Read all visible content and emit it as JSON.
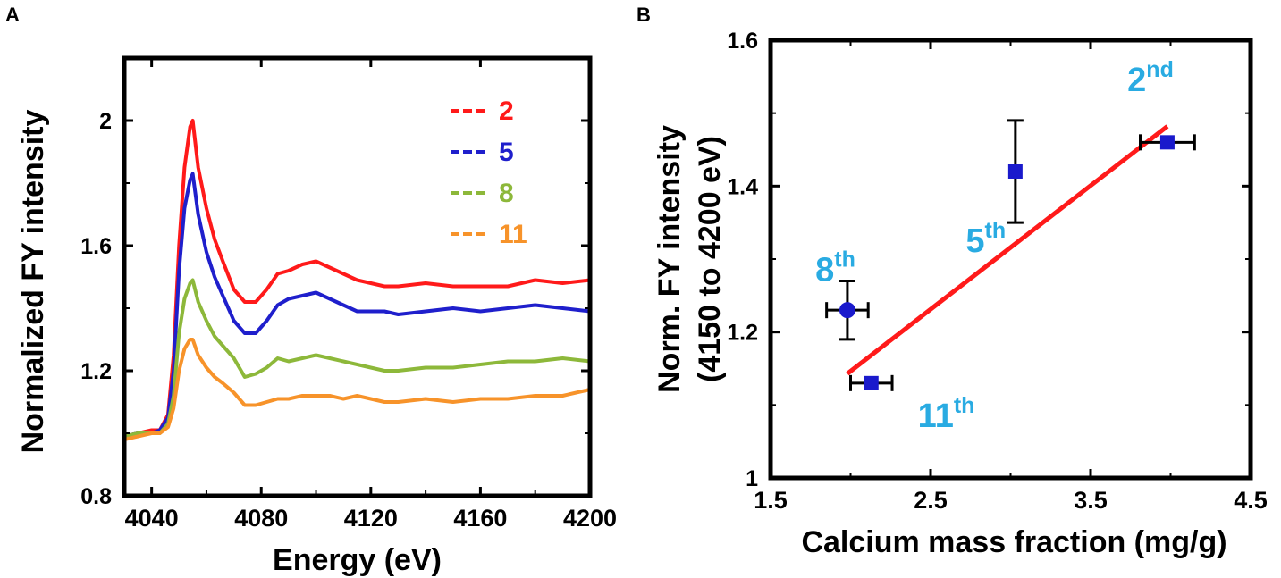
{
  "panel_a_label": "A",
  "panel_b_label": "B",
  "chart_data": [
    {
      "panel": "A",
      "type": "line",
      "title": "",
      "xlabel": "Energy (eV)",
      "ylabel": "Normalized FY intensity",
      "xlim": [
        4030,
        4200
      ],
      "ylim": [
        0.8,
        2.2
      ],
      "xticks": [
        4040,
        4080,
        4120,
        4160,
        4200
      ],
      "xtick_labels": [
        "4040",
        "4080",
        "4120",
        "4160",
        "4200"
      ],
      "yticks": [
        0.8,
        1.2,
        1.6,
        2.0
      ],
      "ytick_labels": [
        "0.8",
        "1.2",
        "1.6",
        "2"
      ],
      "legend_position": "top-right",
      "series": [
        {
          "name": "2",
          "color": "#ff1a1a",
          "x": [
            4030,
            4035,
            4040,
            4043,
            4046,
            4048,
            4050,
            4052,
            4054,
            4055,
            4057,
            4060,
            4063,
            4066,
            4070,
            4074,
            4078,
            4082,
            4086,
            4090,
            4095,
            4100,
            4105,
            4110,
            4115,
            4120,
            4125,
            4130,
            4140,
            4150,
            4160,
            4170,
            4180,
            4190,
            4200
          ],
          "y": [
            0.99,
            1.0,
            1.01,
            1.01,
            1.06,
            1.25,
            1.6,
            1.85,
            1.98,
            2.0,
            1.85,
            1.72,
            1.62,
            1.55,
            1.46,
            1.42,
            1.42,
            1.46,
            1.51,
            1.52,
            1.54,
            1.55,
            1.53,
            1.51,
            1.49,
            1.48,
            1.47,
            1.47,
            1.48,
            1.47,
            1.47,
            1.47,
            1.49,
            1.48,
            1.49
          ]
        },
        {
          "name": "5",
          "color": "#1f1fcc",
          "x": [
            4030,
            4035,
            4040,
            4043,
            4046,
            4048,
            4050,
            4052,
            4054,
            4055,
            4057,
            4060,
            4063,
            4066,
            4070,
            4074,
            4078,
            4082,
            4086,
            4090,
            4095,
            4100,
            4105,
            4110,
            4115,
            4120,
            4125,
            4130,
            4140,
            4150,
            4160,
            4170,
            4180,
            4190,
            4200
          ],
          "y": [
            0.99,
            1.0,
            1.0,
            1.01,
            1.05,
            1.2,
            1.52,
            1.72,
            1.81,
            1.83,
            1.7,
            1.58,
            1.5,
            1.44,
            1.36,
            1.32,
            1.32,
            1.36,
            1.41,
            1.43,
            1.44,
            1.45,
            1.43,
            1.41,
            1.39,
            1.39,
            1.39,
            1.38,
            1.39,
            1.4,
            1.39,
            1.4,
            1.41,
            1.4,
            1.39
          ]
        },
        {
          "name": "8",
          "color": "#8db83a",
          "x": [
            4030,
            4035,
            4040,
            4043,
            4046,
            4048,
            4050,
            4052,
            4054,
            4055,
            4057,
            4060,
            4063,
            4066,
            4070,
            4074,
            4078,
            4082,
            4086,
            4090,
            4095,
            4100,
            4105,
            4110,
            4115,
            4120,
            4125,
            4130,
            4140,
            4150,
            4160,
            4170,
            4180,
            4190,
            4200
          ],
          "y": [
            0.99,
            1.0,
            1.0,
            1.0,
            1.03,
            1.12,
            1.32,
            1.43,
            1.48,
            1.49,
            1.42,
            1.36,
            1.31,
            1.28,
            1.24,
            1.18,
            1.19,
            1.21,
            1.24,
            1.23,
            1.24,
            1.25,
            1.24,
            1.23,
            1.22,
            1.21,
            1.2,
            1.2,
            1.21,
            1.21,
            1.22,
            1.23,
            1.23,
            1.24,
            1.23
          ]
        },
        {
          "name": "11",
          "color": "#f7932a",
          "x": [
            4030,
            4035,
            4040,
            4043,
            4046,
            4048,
            4050,
            4052,
            4054,
            4055,
            4057,
            4060,
            4063,
            4066,
            4070,
            4074,
            4078,
            4082,
            4086,
            4090,
            4095,
            4100,
            4105,
            4110,
            4115,
            4120,
            4125,
            4130,
            4140,
            4150,
            4160,
            4170,
            4180,
            4190,
            4200
          ],
          "y": [
            0.98,
            0.99,
            1.0,
            1.0,
            1.02,
            1.08,
            1.2,
            1.27,
            1.3,
            1.3,
            1.25,
            1.21,
            1.18,
            1.16,
            1.13,
            1.09,
            1.09,
            1.1,
            1.11,
            1.11,
            1.12,
            1.12,
            1.12,
            1.11,
            1.12,
            1.11,
            1.1,
            1.1,
            1.11,
            1.1,
            1.11,
            1.11,
            1.12,
            1.12,
            1.14
          ]
        }
      ]
    },
    {
      "panel": "B",
      "type": "scatter",
      "title": "",
      "xlabel": "Calcium mass fraction (mg/g)",
      "ylabel_line1": "Norm. FY intensity",
      "ylabel_line2": "(4150 to 4200 eV)",
      "xlim": [
        1.5,
        4.5
      ],
      "ylim": [
        1.0,
        1.6
      ],
      "xticks": [
        1.5,
        2.5,
        3.5,
        4.5
      ],
      "xtick_labels": [
        "1.5",
        "2.5",
        "3.5",
        "4.5"
      ],
      "yticks": [
        1.0,
        1.2,
        1.4,
        1.6
      ],
      "ytick_labels": [
        "1",
        "1.2",
        "1.4",
        "1.6"
      ],
      "points": [
        {
          "label": "2",
          "suffix": "nd",
          "x": 3.98,
          "y": 1.46,
          "xerr": 0.17,
          "yerr": 0,
          "marker": "square",
          "color": "#1a1acc",
          "label_x": 3.73,
          "label_y": 1.53
        },
        {
          "label": "5",
          "suffix": "th",
          "x": 3.03,
          "y": 1.42,
          "xerr": 0,
          "yerr": 0.07,
          "marker": "square",
          "color": "#1a1acc",
          "label_x": 2.72,
          "label_y": 1.31
        },
        {
          "label": "8",
          "suffix": "th",
          "x": 1.98,
          "y": 1.23,
          "xerr": 0.13,
          "yerr": 0.04,
          "marker": "circle",
          "color": "#1a1acc",
          "label_x": 1.78,
          "label_y": 1.27
        },
        {
          "label": "11",
          "suffix": "th",
          "x": 2.13,
          "y": 1.13,
          "xerr": 0.13,
          "yerr": 0,
          "marker": "square",
          "color": "#1a1acc",
          "label_x": 2.42,
          "label_y": 1.07
        }
      ],
      "label_color": "#29abe2",
      "fit_line": {
        "x": [
          1.98,
          3.98
        ],
        "y": [
          1.143,
          1.482
        ],
        "color": "#ff1a1a"
      }
    }
  ]
}
